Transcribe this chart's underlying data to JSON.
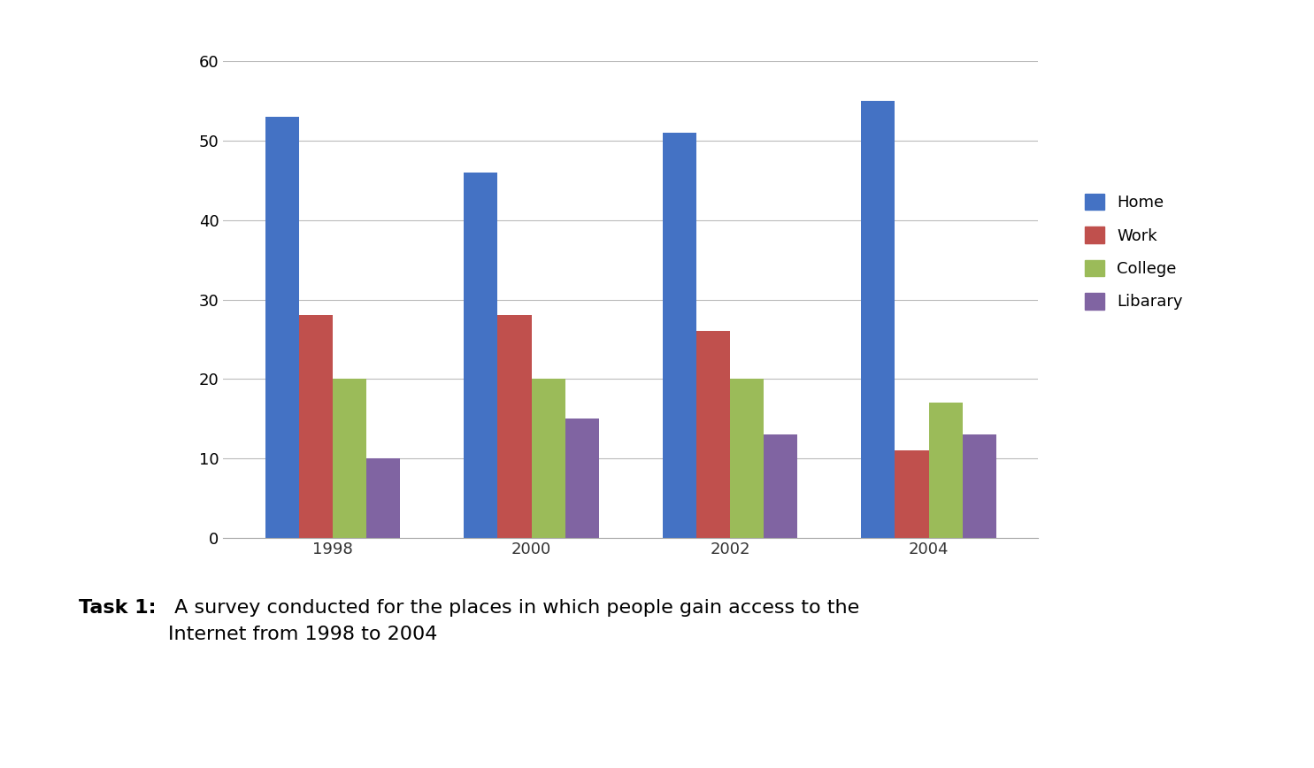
{
  "years": [
    "1998",
    "2000",
    "2002",
    "2004"
  ],
  "series": {
    "Home": [
      53,
      46,
      51,
      55
    ],
    "Work": [
      28,
      28,
      26,
      11
    ],
    "College": [
      20,
      20,
      20,
      17
    ],
    "Libarary": [
      10,
      15,
      13,
      13
    ]
  },
  "colors": {
    "Home": "#4472C4",
    "Work": "#C0504D",
    "College": "#9BBB59",
    "Libarary": "#8064A2"
  },
  "ylim": [
    0,
    60
  ],
  "yticks": [
    0,
    10,
    20,
    30,
    40,
    50,
    60
  ],
  "caption_bold": "Task 1:",
  "caption_normal": " A survey conducted for the places in which people gain access to the\nInternet from 1998 to 2004",
  "background_color": "#FFFFFF",
  "legend_labels": [
    "Home",
    "Work",
    "College",
    "Libarary"
  ]
}
